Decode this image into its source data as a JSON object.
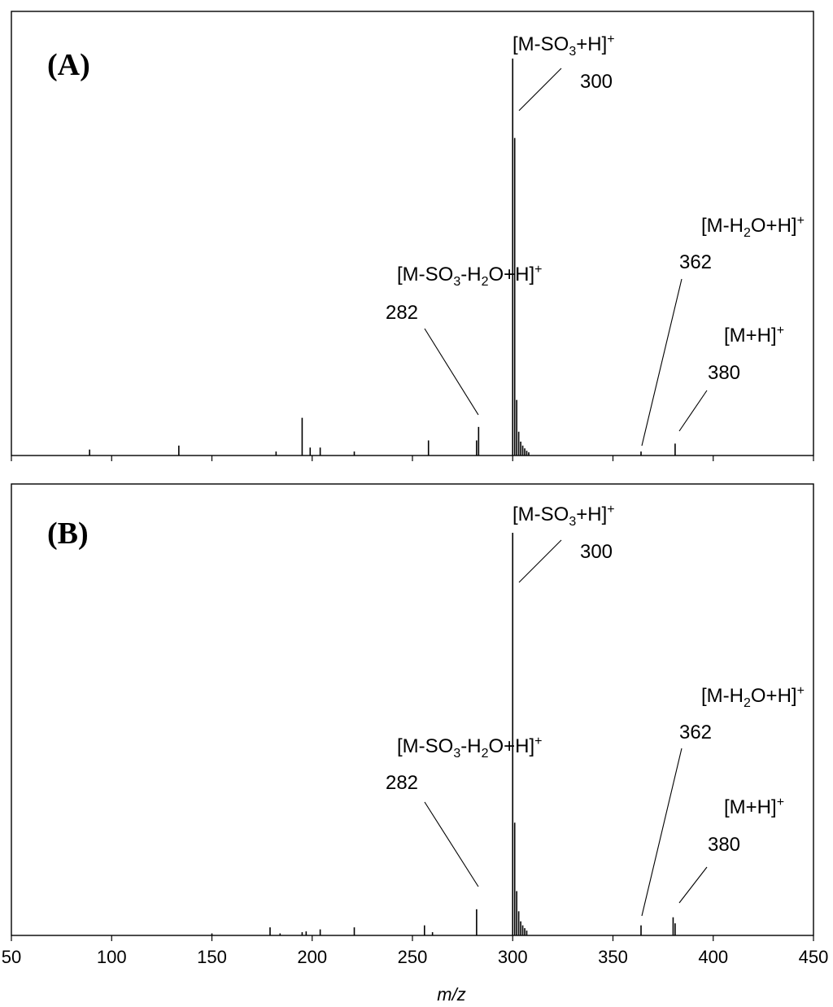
{
  "chart_data": [
    {
      "type": "bar",
      "panel_label": "(A)",
      "xlabel": "",
      "ylabel": "",
      "xlim": [
        50,
        450
      ],
      "ylim": [
        0,
        100
      ],
      "grid": false,
      "peaks": [
        {
          "mz": 89,
          "intensity": 1.5
        },
        {
          "mz": 133.5,
          "intensity": 2.5
        },
        {
          "mz": 182,
          "intensity": 1.0
        },
        {
          "mz": 195,
          "intensity": 9.5
        },
        {
          "mz": 199,
          "intensity": 2.0
        },
        {
          "mz": 204,
          "intensity": 2.0
        },
        {
          "mz": 221,
          "intensity": 1.0
        },
        {
          "mz": 258,
          "intensity": 3.8
        },
        {
          "mz": 282,
          "intensity": 3.8
        },
        {
          "mz": 283,
          "intensity": 7.2
        },
        {
          "mz": 300,
          "intensity": 100
        },
        {
          "mz": 301,
          "intensity": 80
        },
        {
          "mz": 302,
          "intensity": 14
        },
        {
          "mz": 303,
          "intensity": 6
        },
        {
          "mz": 304,
          "intensity": 3.5
        },
        {
          "mz": 305,
          "intensity": 2.5
        },
        {
          "mz": 306,
          "intensity": 1.8
        },
        {
          "mz": 307,
          "intensity": 1.2
        },
        {
          "mz": 308,
          "intensity": 0.8
        },
        {
          "mz": 364,
          "intensity": 1.0
        },
        {
          "mz": 381,
          "intensity": 3.0
        }
      ],
      "annotations": [
        {
          "pre": "[M-SO",
          "sub": "3",
          "post": "+H]",
          "sup": "+",
          "value": "300"
        },
        {
          "pre": "[M-H",
          "sub": "2",
          "post": "O+H]",
          "sup": "+",
          "value": "362"
        },
        {
          "pre": "[M-SO",
          "sub": "3",
          "mid": "-H",
          "sub2": "2",
          "post": "O+H]",
          "sup": "+",
          "value": "282"
        },
        {
          "pre": "[M+H]",
          "sup": "+",
          "value": "380"
        }
      ]
    },
    {
      "type": "bar",
      "panel_label": "(B)",
      "xlabel": "m/z",
      "ylabel": "",
      "xlim": [
        50,
        450
      ],
      "ylim": [
        0,
        100
      ],
      "grid": false,
      "xticks": [
        "50",
        "100",
        "150",
        "200",
        "250",
        "300",
        "350",
        "400",
        "450"
      ],
      "peaks": [
        {
          "mz": 150,
          "intensity": 0.5
        },
        {
          "mz": 179,
          "intensity": 2.0
        },
        {
          "mz": 184,
          "intensity": 0.5
        },
        {
          "mz": 195,
          "intensity": 0.8
        },
        {
          "mz": 197,
          "intensity": 1.0
        },
        {
          "mz": 204,
          "intensity": 1.5
        },
        {
          "mz": 221,
          "intensity": 2.0
        },
        {
          "mz": 256,
          "intensity": 2.5
        },
        {
          "mz": 260,
          "intensity": 0.8
        },
        {
          "mz": 282,
          "intensity": 6.5
        },
        {
          "mz": 300,
          "intensity": 100
        },
        {
          "mz": 301,
          "intensity": 28
        },
        {
          "mz": 302,
          "intensity": 11
        },
        {
          "mz": 303,
          "intensity": 6
        },
        {
          "mz": 304,
          "intensity": 3.5
        },
        {
          "mz": 305,
          "intensity": 2.5
        },
        {
          "mz": 306,
          "intensity": 1.8
        },
        {
          "mz": 307,
          "intensity": 1.2
        },
        {
          "mz": 364,
          "intensity": 2.5
        },
        {
          "mz": 380,
          "intensity": 4.5
        },
        {
          "mz": 381,
          "intensity": 3.0
        }
      ],
      "annotations": [
        {
          "pre": "[M-SO",
          "sub": "3",
          "post": "+H]",
          "sup": "+",
          "value": "300"
        },
        {
          "pre": "[M-H",
          "sub": "2",
          "post": "O+H]",
          "sup": "+",
          "value": "362"
        },
        {
          "pre": "[M-SO",
          "sub": "3",
          "mid": "-H",
          "sub2": "2",
          "post": "O+H]",
          "sup": "+",
          "value": "282"
        },
        {
          "pre": "[M+H]",
          "sup": "+",
          "value": "380"
        }
      ]
    }
  ]
}
